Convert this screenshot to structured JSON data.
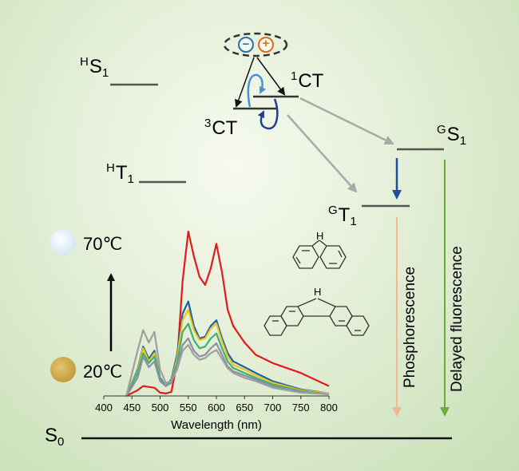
{
  "labels": {
    "hs1": {
      "sup": "H",
      "main": "S",
      "sub": "1"
    },
    "ht1": {
      "sup": "H",
      "main": "T",
      "sub": "1"
    },
    "ct1": {
      "sup": "1",
      "main": "CT"
    },
    "ct3": {
      "sup": "3",
      "main": "CT"
    },
    "gs1": {
      "sup": "G",
      "main": "S",
      "sub": "1"
    },
    "gt1": {
      "sup": "G",
      "main": "T",
      "sub": "1"
    },
    "s0": {
      "main": "S",
      "sub": "0"
    },
    "phosphorescence": "Phosphorescence",
    "delayed_fluorescence": "Delayed fluorescence",
    "temp_high": "70℃",
    "temp_low": "20℃",
    "charge_minus": "−",
    "charge_plus": "+",
    "nh_top": "H",
    "nh_bottom": "H"
  },
  "colors": {
    "hot_bulb": "#dfeefa",
    "cold_bulb": "#c9a44a",
    "phos_arrow": "#f0b98f",
    "df_arrow": "#6aac3a",
    "down_arrow": "#1f4e9e",
    "grey_arrow": "#a9a9a9",
    "minus": "#2a6fb5",
    "plus": "#d96d1e"
  },
  "chart_data": {
    "type": "line",
    "xlabel": "Wavelength (nm)",
    "ylabel": "",
    "xlim": [
      400,
      800
    ],
    "xticks": [
      400,
      450,
      500,
      550,
      600,
      650,
      700,
      750,
      800
    ],
    "series": [
      {
        "color": "#e31a1c",
        "x": [
          440,
          460,
          470,
          480,
          490,
          500,
          510,
          520,
          530,
          540,
          550,
          560,
          570,
          580,
          590,
          600,
          610,
          620,
          630,
          650,
          670,
          700,
          750,
          800
        ],
        "y": [
          0,
          0.07,
          0.12,
          0.11,
          0.1,
          0.04,
          0.03,
          0.05,
          0.4,
          1.4,
          2.0,
          1.7,
          1.45,
          1.35,
          1.55,
          1.85,
          1.5,
          1.05,
          0.85,
          0.65,
          0.5,
          0.4,
          0.28,
          0.12
        ]
      },
      {
        "color": "#1f5fa8",
        "x": [
          440,
          460,
          470,
          480,
          490,
          500,
          510,
          520,
          530,
          540,
          550,
          560,
          570,
          580,
          590,
          600,
          610,
          620,
          630,
          650,
          670,
          700,
          750,
          800
        ],
        "y": [
          0,
          0.32,
          0.6,
          0.45,
          0.55,
          0.22,
          0.12,
          0.2,
          0.5,
          1.0,
          1.15,
          0.85,
          0.7,
          0.72,
          0.85,
          0.92,
          0.7,
          0.52,
          0.42,
          0.35,
          0.28,
          0.18,
          0.08,
          0.03
        ]
      },
      {
        "color": "#f0c419",
        "x": [
          440,
          460,
          470,
          480,
          490,
          500,
          510,
          520,
          530,
          540,
          550,
          560,
          570,
          580,
          590,
          600,
          610,
          620,
          630,
          650,
          670,
          700,
          750,
          800
        ],
        "y": [
          0,
          0.3,
          0.58,
          0.42,
          0.52,
          0.2,
          0.12,
          0.18,
          0.45,
          0.92,
          1.05,
          0.8,
          0.68,
          0.7,
          0.82,
          0.88,
          0.66,
          0.48,
          0.38,
          0.32,
          0.25,
          0.16,
          0.07,
          0.03
        ]
      },
      {
        "color": "#3cb371",
        "x": [
          440,
          460,
          470,
          480,
          490,
          500,
          510,
          520,
          530,
          540,
          550,
          560,
          570,
          580,
          590,
          600,
          610,
          620,
          630,
          650,
          670,
          700,
          750,
          800
        ],
        "y": [
          0,
          0.28,
          0.52,
          0.4,
          0.48,
          0.2,
          0.12,
          0.18,
          0.4,
          0.78,
          0.88,
          0.68,
          0.58,
          0.6,
          0.7,
          0.76,
          0.58,
          0.42,
          0.34,
          0.28,
          0.22,
          0.14,
          0.06,
          0.02
        ]
      },
      {
        "color": "#8a8fa8",
        "x": [
          440,
          460,
          470,
          480,
          490,
          500,
          510,
          520,
          530,
          540,
          550,
          560,
          570,
          580,
          590,
          600,
          610,
          620,
          630,
          650,
          670,
          700,
          750,
          800
        ],
        "y": [
          0,
          0.22,
          0.48,
          0.35,
          0.42,
          0.18,
          0.12,
          0.16,
          0.35,
          0.62,
          0.7,
          0.55,
          0.48,
          0.5,
          0.58,
          0.64,
          0.5,
          0.36,
          0.3,
          0.25,
          0.2,
          0.12,
          0.05,
          0.02
        ]
      },
      {
        "color": "#9e9e9e",
        "x": [
          440,
          460,
          470,
          480,
          490,
          500,
          510,
          520,
          530,
          540,
          550,
          560,
          570,
          580,
          590,
          600,
          610,
          620,
          630,
          650,
          670,
          700,
          750,
          800
        ],
        "y": [
          0,
          0.55,
          0.8,
          0.65,
          0.78,
          0.32,
          0.16,
          0.18,
          0.32,
          0.55,
          0.62,
          0.5,
          0.44,
          0.46,
          0.52,
          0.56,
          0.45,
          0.34,
          0.28,
          0.22,
          0.18,
          0.1,
          0.04,
          0.02
        ]
      }
    ]
  }
}
